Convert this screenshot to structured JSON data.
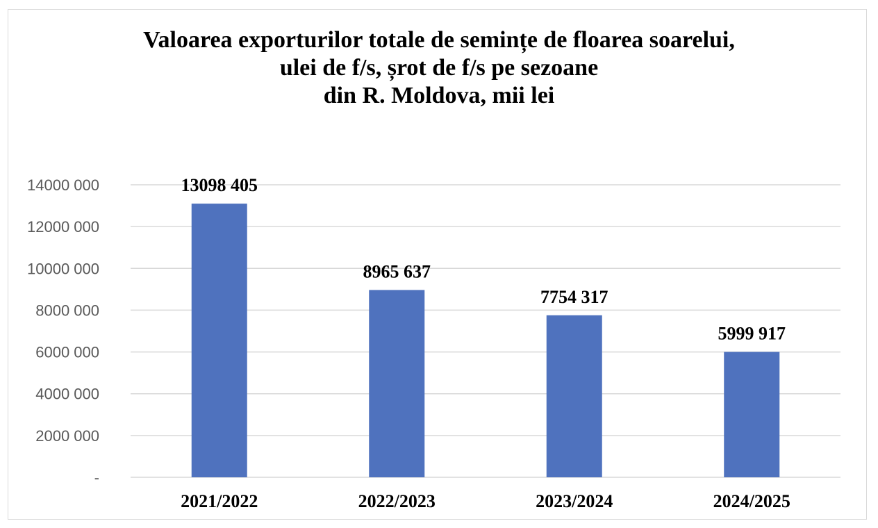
{
  "chart_data": {
    "type": "bar",
    "title_lines": [
      "Valoarea exporturilor totale de semințe de floarea soarelui,",
      "ulei de f/s, șrot de f/s pe sezoane",
      "din R. Moldova, mii lei"
    ],
    "categories": [
      "2021/2022",
      "2022/2023",
      "2023/2024",
      "2024/2025"
    ],
    "values": [
      13098405,
      8965637,
      7754317,
      5999917
    ],
    "data_labels": [
      "13098 405",
      "8965 637",
      "7754 317",
      "5999 917"
    ],
    "y_ticks": [
      0,
      2000000,
      4000000,
      6000000,
      8000000,
      10000000,
      12000000,
      14000000
    ],
    "y_tick_labels": [
      "-",
      "2000 000",
      "4000 000",
      "6000 000",
      "8000 000",
      "10000 000",
      "12000 000",
      "14000 000"
    ],
    "ylim": [
      0,
      14000000
    ],
    "xlabel": "",
    "ylabel": "",
    "grid": true,
    "legend": "none",
    "bar_color": "#4f72be",
    "grid_color": "#d9d9d9"
  }
}
